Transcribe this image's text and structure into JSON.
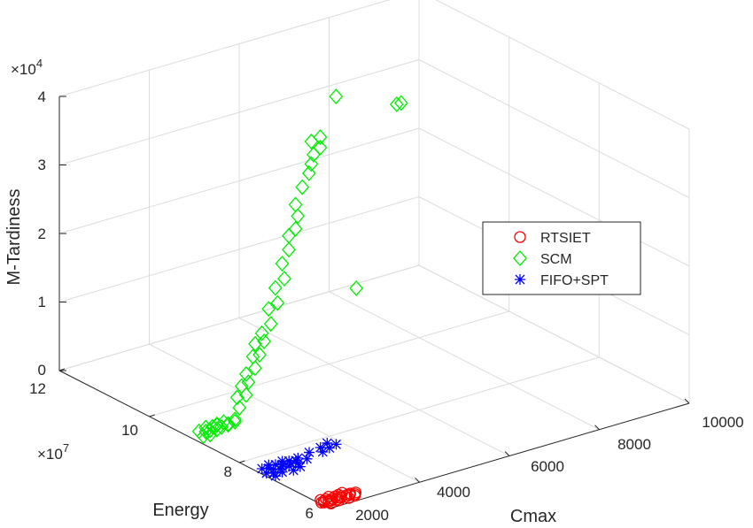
{
  "chart_data": {
    "type": "scatter3d",
    "xlabel": "Cmax",
    "ylabel": "Energy",
    "zlabel": "M-Tardiness",
    "x_ticks": [
      "2000",
      "4000",
      "6000",
      "8000",
      "10000"
    ],
    "y_ticks": [
      "6",
      "8",
      "10",
      "12"
    ],
    "y_exponent_label": "×10",
    "y_exponent": "7",
    "z_ticks": [
      "0",
      "1",
      "2",
      "3",
      "4"
    ],
    "z_exponent_label": "×10",
    "z_exponent": "4",
    "xlim": [
      2000,
      10000
    ],
    "ylim": [
      6,
      12
    ],
    "zlim": [
      0,
      40000
    ],
    "grid": true,
    "legend_position": "right",
    "series": [
      {
        "name": "RTSIET",
        "marker": "circle",
        "color": "#ff0000",
        "points": [
          [
            2040,
            6.22,
            50
          ],
          [
            2080,
            6.2,
            60
          ],
          [
            2120,
            6.25,
            40
          ],
          [
            2160,
            6.18,
            80
          ],
          [
            2200,
            6.22,
            60
          ],
          [
            2250,
            6.2,
            50
          ],
          [
            2300,
            6.24,
            70
          ],
          [
            2350,
            6.18,
            40
          ],
          [
            2400,
            6.22,
            90
          ],
          [
            2450,
            6.2,
            60
          ],
          [
            2500,
            6.24,
            50
          ],
          [
            2550,
            6.18,
            70
          ],
          [
            2600,
            6.22,
            80
          ],
          [
            2650,
            6.2,
            60
          ],
          [
            2700,
            6.24,
            40
          ],
          [
            2750,
            6.18,
            50
          ],
          [
            2800,
            6.22,
            70
          ],
          [
            2100,
            6.3,
            60
          ],
          [
            2200,
            6.28,
            50
          ],
          [
            2300,
            6.32,
            80
          ],
          [
            2400,
            6.28,
            60
          ],
          [
            2500,
            6.3,
            40
          ],
          [
            2600,
            6.32,
            70
          ],
          [
            2150,
            6.12,
            50
          ],
          [
            2350,
            6.14,
            60
          ],
          [
            2550,
            6.12,
            80
          ],
          [
            2700,
            6.14,
            60
          ]
        ]
      },
      {
        "name": "SCM",
        "marker": "diamond",
        "color": "#00ee00",
        "points": [
          [
            2050,
            8.85,
            900
          ],
          [
            2100,
            9.0,
            1000
          ],
          [
            2150,
            8.8,
            1100
          ],
          [
            2200,
            8.95,
            950
          ],
          [
            2250,
            8.9,
            1200
          ],
          [
            2300,
            9.05,
            1000
          ],
          [
            2350,
            8.85,
            1300
          ],
          [
            2400,
            9.0,
            1100
          ],
          [
            2450,
            8.95,
            1400
          ],
          [
            2500,
            8.9,
            1200
          ],
          [
            2550,
            9.05,
            1000
          ],
          [
            2600,
            8.85,
            1500
          ],
          [
            2650,
            9.0,
            1300
          ],
          [
            2700,
            8.95,
            1100
          ],
          [
            2800,
            8.9,
            1400
          ],
          [
            2900,
            9.0,
            1200
          ],
          [
            3100,
            9.1,
            2200
          ],
          [
            3200,
            9.25,
            3000
          ],
          [
            3300,
            9.15,
            3500
          ],
          [
            3350,
            9.3,
            4200
          ],
          [
            3400,
            9.2,
            5000
          ],
          [
            3500,
            9.35,
            5500
          ],
          [
            3600,
            9.25,
            6500
          ],
          [
            3700,
            9.4,
            7500
          ],
          [
            3750,
            9.3,
            8000
          ],
          [
            3800,
            9.45,
            9000
          ],
          [
            3900,
            9.35,
            9500
          ],
          [
            4000,
            9.5,
            10000
          ],
          [
            4100,
            9.4,
            11500
          ],
          [
            4200,
            9.55,
            13000
          ],
          [
            4300,
            9.45,
            14000
          ],
          [
            4400,
            9.6,
            15500
          ],
          [
            4500,
            9.5,
            17000
          ],
          [
            4600,
            9.65,
            18500
          ],
          [
            4700,
            9.6,
            20500
          ],
          [
            4800,
            9.7,
            22000
          ],
          [
            4900,
            9.65,
            23000
          ],
          [
            5000,
            9.7,
            24500
          ],
          [
            5000,
            9.75,
            26000
          ],
          [
            5200,
            9.8,
            28000
          ],
          [
            5300,
            9.75,
            30000
          ],
          [
            5400,
            9.8,
            31000
          ],
          [
            5500,
            9.85,
            32000
          ],
          [
            5600,
            9.8,
            33000
          ],
          [
            5700,
            9.9,
            34000
          ],
          [
            5300,
            9.7,
            34800
          ],
          [
            6100,
            9.95,
            39000
          ],
          [
            7500,
            10.0,
            35000
          ],
          [
            7600,
            10.0,
            35000
          ],
          [
            6200,
            9.6,
            12000
          ]
        ]
      },
      {
        "name": "FIFO+SPT",
        "marker": "asterisk",
        "color": "#0000ff",
        "points": [
          [
            2050,
            7.45,
            200
          ],
          [
            2100,
            7.6,
            250
          ],
          [
            2150,
            7.4,
            180
          ],
          [
            2200,
            7.55,
            300
          ],
          [
            2250,
            7.5,
            220
          ],
          [
            2300,
            7.65,
            260
          ],
          [
            2350,
            7.45,
            240
          ],
          [
            2400,
            7.6,
            280
          ],
          [
            2450,
            7.5,
            200
          ],
          [
            2500,
            7.55,
            300
          ],
          [
            2550,
            7.45,
            260
          ],
          [
            2600,
            7.65,
            220
          ],
          [
            2650,
            7.5,
            280
          ],
          [
            2700,
            7.6,
            240
          ],
          [
            2750,
            7.45,
            300
          ],
          [
            2800,
            7.55,
            260
          ],
          [
            2900,
            7.6,
            280
          ],
          [
            3000,
            7.5,
            300
          ],
          [
            3200,
            7.65,
            350
          ],
          [
            3400,
            7.55,
            380
          ],
          [
            3500,
            7.7,
            320
          ],
          [
            3600,
            7.6,
            400
          ],
          [
            3700,
            7.75,
            420
          ],
          [
            3800,
            7.65,
            380
          ],
          [
            2100,
            7.3,
            200
          ],
          [
            2300,
            7.35,
            220
          ],
          [
            2500,
            7.3,
            260
          ],
          [
            2700,
            7.35,
            240
          ]
        ]
      }
    ]
  }
}
